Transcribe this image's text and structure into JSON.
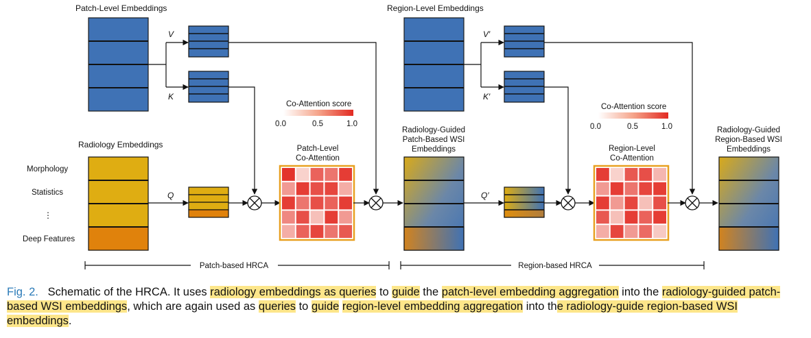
{
  "labels": {
    "patch_level_embeddings": "Patch-Level Embeddings",
    "region_level_embeddings": "Region-Level Embeddings",
    "radiology_embeddings": "Radiology Embeddings",
    "row_morphology": "Morphology",
    "row_statistics": "Statistics",
    "row_ellipsis": "⋮",
    "row_deep_features": "Deep Features",
    "v": "V",
    "k": "K",
    "q": "Q",
    "v_prime": "V′",
    "k_prime": "K′",
    "q_prime": "Q′",
    "co_attention_score": "Co-Attention score",
    "score_min": "0.0",
    "score_mid": "0.5",
    "score_max": "1.0",
    "patch_co_attention_1": "Patch-Level",
    "patch_co_attention_2": "Co-Attention",
    "region_co_attention_1": "Region-Level",
    "region_co_attention_2": "Co-Attention",
    "patch_output_1": "Radiology-Guided",
    "patch_output_2": "Patch-Based WSI",
    "patch_output_3": "Embeddings",
    "region_output_1": "Radiology-Guided",
    "region_output_2": "Region-Based WSI",
    "region_output_3": "Embeddings",
    "patch_hrca": "Patch-based HRCA",
    "region_hrca": "Region-based HRCA"
  },
  "colors": {
    "blue": "#3f72b5",
    "yellow": "#dfad12",
    "orange": "#e0820c",
    "heat_border": "#e8a020",
    "heat_low": "#fbe5df",
    "heat_high": "#e22a22"
  },
  "patch_heatmap": [
    [
      0.95,
      0.1,
      0.7,
      0.6,
      0.9
    ],
    [
      0.4,
      0.9,
      0.8,
      0.85,
      0.3
    ],
    [
      0.9,
      0.6,
      0.8,
      0.7,
      0.9
    ],
    [
      0.5,
      0.8,
      0.2,
      0.9,
      0.4
    ],
    [
      0.3,
      0.7,
      0.85,
      0.6,
      0.75
    ]
  ],
  "region_heatmap": [
    [
      0.9,
      0.1,
      0.75,
      0.8,
      0.25
    ],
    [
      0.4,
      0.9,
      0.6,
      0.85,
      0.9
    ],
    [
      0.9,
      0.4,
      0.85,
      0.2,
      0.8
    ],
    [
      0.75,
      0.2,
      0.9,
      0.7,
      0.9
    ],
    [
      0.3,
      0.85,
      0.4,
      0.65,
      0.15
    ]
  ],
  "caption": {
    "fig": "Fig. 2.",
    "t1": "Schematic of the HRCA. It uses ",
    "h1": "radiology embeddings as queries",
    "t2": " to ",
    "h2": "guide",
    "t3": " the ",
    "h3": "patch-level embedding aggregation",
    "t4": " into the ",
    "h4": "radiology-guided patch-based WSI embeddings",
    "t5": ", which are again used as ",
    "h5": "queries",
    "t6": " to ",
    "h6": "guide",
    "t7": " ",
    "h7": "region-level embedding aggregation",
    "t8": " into th",
    "h8": "e radiology-guide region-based WSI embeddings",
    "t9": "."
  }
}
